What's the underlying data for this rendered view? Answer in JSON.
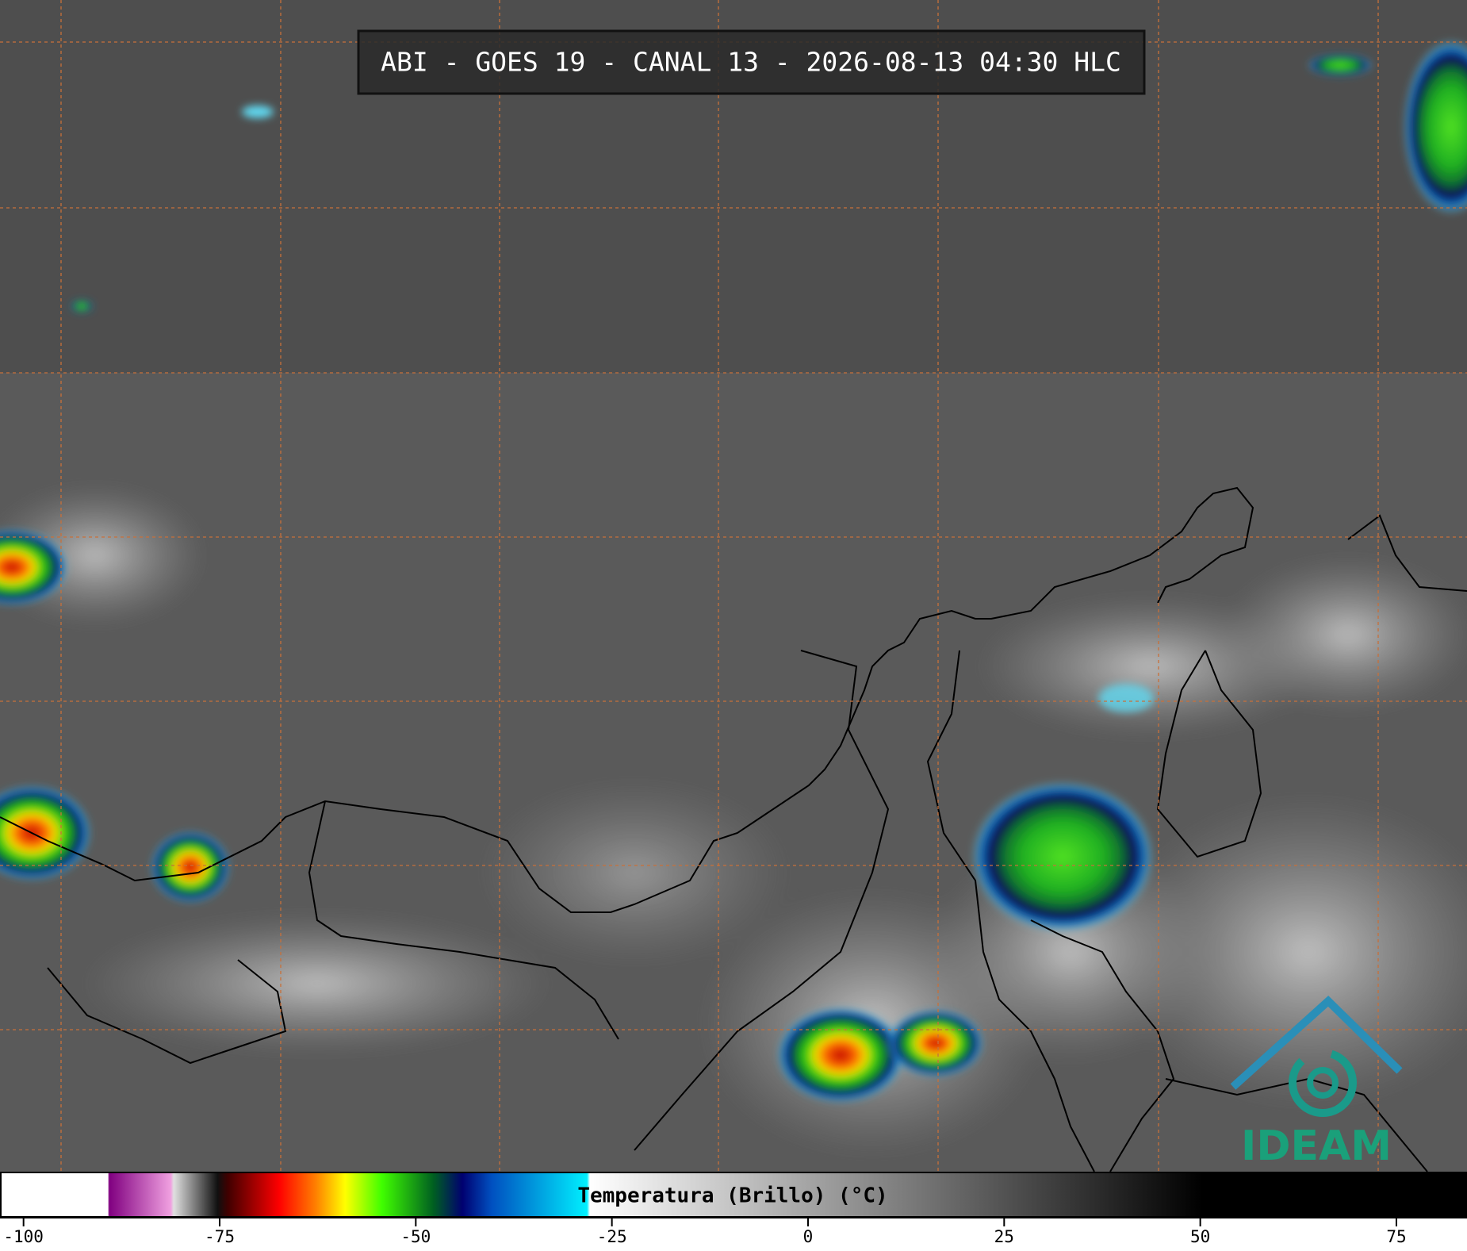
{
  "title": "ABI - GOES 19 - CANAL 13 - 2026-08-13 04:30 HLC",
  "logo": "IDEAM",
  "colorbar": {
    "label": "Temperatura (Brillo) (°C)",
    "lim": [
      -103,
      84
    ],
    "ticks": [
      -100,
      -75,
      -50,
      -25,
      0,
      25,
      50,
      75
    ]
  }
}
